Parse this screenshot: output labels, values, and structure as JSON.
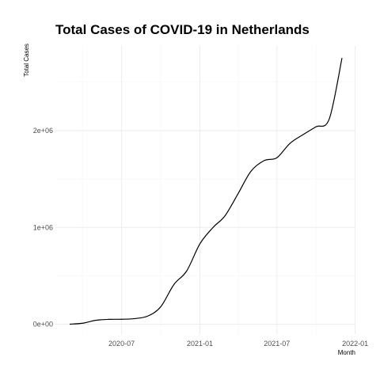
{
  "chart_data": {
    "type": "line",
    "title": "Total Cases of COVID-19 in Netherlands",
    "xlabel": "Month",
    "ylabel": "Total Cases",
    "x_ticks": [
      "2020-07",
      "2021-01",
      "2021-07",
      "2022-01"
    ],
    "y_ticks": [
      "0e+00",
      "1e+06",
      "2e+06"
    ],
    "grid": true,
    "series": [
      {
        "color": "#000000",
        "x": [
          "2020-03-01",
          "2020-04-01",
          "2020-05-01",
          "2020-06-01",
          "2020-07-01",
          "2020-08-01",
          "2020-09-01",
          "2020-10-01",
          "2020-11-01",
          "2020-12-01",
          "2021-01-01",
          "2021-02-01",
          "2021-03-01",
          "2021-04-01",
          "2021-05-01",
          "2021-06-01",
          "2021-07-01",
          "2021-08-01",
          "2021-09-01",
          "2021-10-01",
          "2021-11-01",
          "2021-12-01"
        ],
        "values": [
          0,
          10000,
          40000,
          50000,
          51000,
          58000,
          85000,
          180000,
          410000,
          550000,
          830000,
          1000000,
          1120000,
          1350000,
          1580000,
          1690000,
          1720000,
          1870000,
          1960000,
          2040000,
          2120000,
          2750000
        ]
      }
    ]
  }
}
